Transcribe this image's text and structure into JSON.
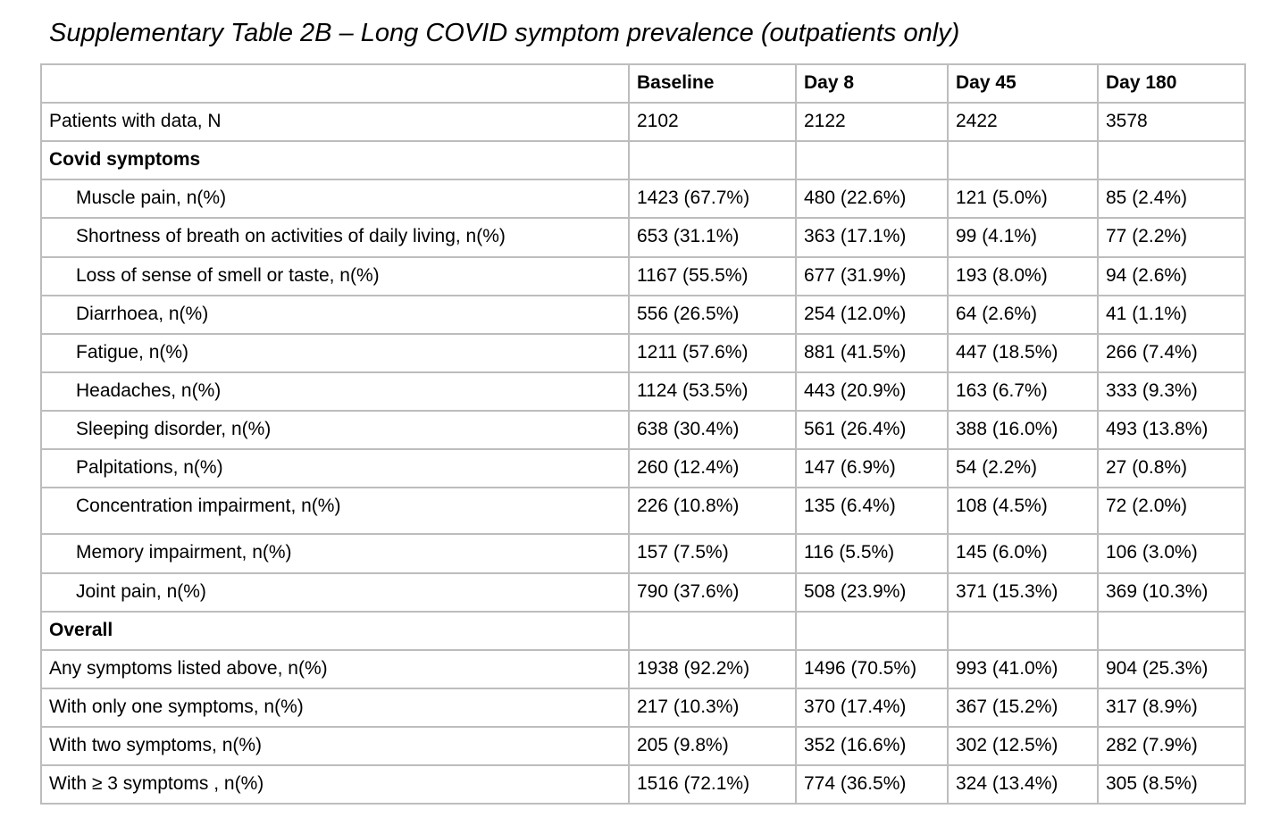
{
  "title": "Supplementary Table 2B – Long COVID symptom prevalence (outpatients only)",
  "colors": {
    "border": "#bdbdbd",
    "text": "#000000",
    "background": "#ffffff"
  },
  "table": {
    "columns": [
      "Baseline",
      "Day 8",
      "Day 45",
      "Day 180"
    ],
    "rows": [
      {
        "label": "Patients with data, N",
        "kind": "top",
        "values": [
          "2102",
          "2122",
          "2422",
          "3578"
        ]
      },
      {
        "label": "Covid symptoms",
        "kind": "section",
        "values": [
          "",
          "",
          "",
          ""
        ]
      },
      {
        "label": "Muscle pain, n(%)",
        "kind": "item",
        "values": [
          "1423 (67.7%)",
          "480 (22.6%)",
          "121 (5.0%)",
          "85 (2.4%)"
        ]
      },
      {
        "label": "Shortness of breath on activities of daily living, n(%)",
        "kind": "item",
        "values": [
          "653 (31.1%)",
          "363 (17.1%)",
          "99 (4.1%)",
          "77 (2.2%)"
        ]
      },
      {
        "label": "Loss of sense of smell or taste, n(%)",
        "kind": "item",
        "values": [
          "1167 (55.5%)",
          "677 (31.9%)",
          "193 (8.0%)",
          "94 (2.6%)"
        ]
      },
      {
        "label": "Diarrhoea, n(%)",
        "kind": "item",
        "values": [
          "556 (26.5%)",
          "254 (12.0%)",
          "64 (2.6%)",
          "41 (1.1%)"
        ]
      },
      {
        "label": "Fatigue, n(%)",
        "kind": "item",
        "values": [
          "1211 (57.6%)",
          "881 (41.5%)",
          "447 (18.5%)",
          "266 (7.4%)"
        ]
      },
      {
        "label": "Headaches, n(%)",
        "kind": "item",
        "values": [
          "1124 (53.5%)",
          "443 (20.9%)",
          "163 (6.7%)",
          "333 (9.3%)"
        ]
      },
      {
        "label": "Sleeping disorder, n(%)",
        "kind": "item",
        "values": [
          "638 (30.4%)",
          "561 (26.4%)",
          "388 (16.0%)",
          "493 (13.8%)"
        ]
      },
      {
        "label": "Palpitations, n(%)",
        "kind": "item",
        "values": [
          "260 (12.4%)",
          "147 (6.9%)",
          "54 (2.2%)",
          "27 (0.8%)"
        ]
      },
      {
        "label": "Concentration impairment, n(%)",
        "kind": "item",
        "tall": true,
        "values": [
          "226 (10.8%)",
          "135 (6.4%)",
          "108 (4.5%)",
          "72 (2.0%)"
        ]
      },
      {
        "label": "Memory impairment, n(%)",
        "kind": "item",
        "values": [
          "157 (7.5%)",
          "116 (5.5%)",
          "145 (6.0%)",
          "106 (3.0%)"
        ]
      },
      {
        "label": "Joint pain, n(%)",
        "kind": "item",
        "values": [
          "790 (37.6%)",
          "508 (23.9%)",
          "371 (15.3%)",
          "369 (10.3%)"
        ]
      },
      {
        "label": "Overall",
        "kind": "section",
        "values": [
          "",
          "",
          "",
          ""
        ]
      },
      {
        "label": "Any symptoms listed above, n(%)",
        "kind": "top",
        "values": [
          "1938 (92.2%)",
          "1496 (70.5%)",
          "993 (41.0%)",
          "904 (25.3%)"
        ]
      },
      {
        "label": "With only one symptoms, n(%)",
        "kind": "top",
        "values": [
          "217 (10.3%)",
          "370 (17.4%)",
          "367 (15.2%)",
          "317 (8.9%)"
        ]
      },
      {
        "label": "With two symptoms, n(%)",
        "kind": "top",
        "values": [
          "205 (9.8%)",
          "352 (16.6%)",
          "302 (12.5%)",
          "282 (7.9%)"
        ]
      },
      {
        "label": "With ≥ 3 symptoms , n(%)",
        "kind": "top",
        "values": [
          "1516 (72.1%)",
          "774 (36.5%)",
          "324 (13.4%)",
          "305 (8.5%)"
        ]
      }
    ]
  }
}
